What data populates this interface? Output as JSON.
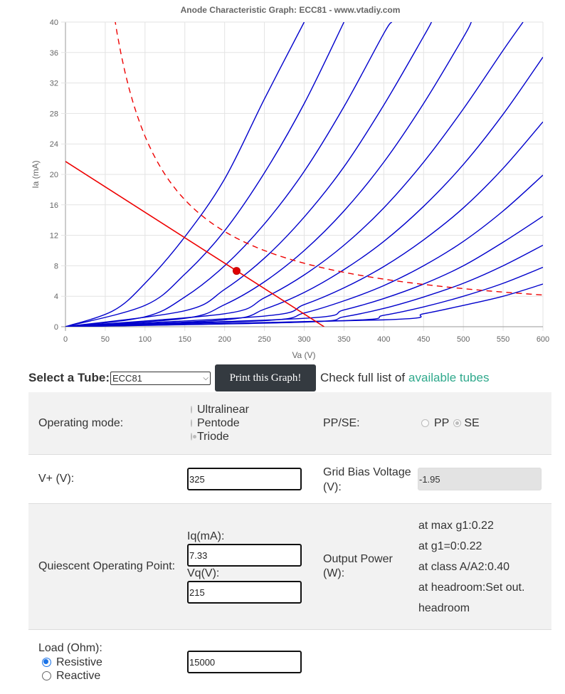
{
  "chart_data": {
    "type": "line",
    "title": "Anode Characteristic Graph: ECC81 - www.vtadiy.com",
    "xlabel": "Va (V)",
    "ylabel": "Ia (mA)",
    "xlim": [
      0,
      600
    ],
    "ylim": [
      0,
      40
    ],
    "xticks": [
      "0",
      "50",
      "100",
      "150",
      "200",
      "250",
      "300",
      "350",
      "400",
      "450",
      "500",
      "550",
      "600"
    ],
    "yticks": [
      "0",
      "4",
      "8",
      "12",
      "16",
      "20",
      "24",
      "28",
      "32",
      "36",
      "40"
    ],
    "grid": true,
    "colors": {
      "curves": "#0000cc",
      "load": "#ee0000",
      "dissipation": "#ee0000"
    },
    "grid_curves": [
      {
        "points": [
          [
            0,
            0
          ],
          [
            60,
            2.1
          ],
          [
            100,
            5.7
          ],
          [
            150,
            11.8
          ],
          [
            200,
            19.4
          ],
          [
            250,
            29.9
          ],
          [
            300,
            40
          ]
        ]
      },
      {
        "points": [
          [
            0,
            0
          ],
          [
            100,
            2.8
          ],
          [
            150,
            6.9
          ],
          [
            200,
            12.6
          ],
          [
            250,
            20.2
          ],
          [
            300,
            29.3
          ],
          [
            350,
            40
          ]
        ]
      },
      {
        "points": [
          [
            0,
            0
          ],
          [
            100,
            1.3
          ],
          [
            150,
            3.9
          ],
          [
            200,
            8.0
          ],
          [
            250,
            13.5
          ],
          [
            300,
            20.4
          ],
          [
            350,
            28.9
          ],
          [
            400,
            38.5
          ],
          [
            410,
            40
          ]
        ]
      },
      {
        "points": [
          [
            0,
            0
          ],
          [
            150,
            2.1
          ],
          [
            200,
            4.9
          ],
          [
            250,
            9.0
          ],
          [
            300,
            14.4
          ],
          [
            350,
            21.0
          ],
          [
            400,
            29.1
          ],
          [
            450,
            38.1
          ],
          [
            460,
            40
          ]
        ]
      },
      {
        "points": [
          [
            0,
            0
          ],
          [
            150,
            1.1
          ],
          [
            200,
            2.9
          ],
          [
            250,
            5.9
          ],
          [
            300,
            10.0
          ],
          [
            350,
            15.2
          ],
          [
            400,
            21.6
          ],
          [
            450,
            29.3
          ],
          [
            500,
            38.0
          ],
          [
            510,
            40
          ]
        ]
      },
      {
        "points": [
          [
            0,
            0
          ],
          [
            200,
            1.7
          ],
          [
            250,
            3.8
          ],
          [
            300,
            6.8
          ],
          [
            350,
            10.7
          ],
          [
            400,
            15.6
          ],
          [
            450,
            21.6
          ],
          [
            500,
            28.6
          ],
          [
            550,
            36.3
          ],
          [
            575,
            40
          ]
        ]
      },
      {
        "points": [
          [
            0,
            0
          ],
          [
            200,
            0.9
          ],
          [
            250,
            2.3
          ],
          [
            300,
            4.5
          ],
          [
            350,
            7.5
          ],
          [
            400,
            11.2
          ],
          [
            450,
            15.8
          ],
          [
            500,
            21.3
          ],
          [
            550,
            27.9
          ],
          [
            600,
            35.4
          ]
        ]
      },
      {
        "points": [
          [
            0,
            0
          ],
          [
            250,
            1.4
          ],
          [
            300,
            2.9
          ],
          [
            350,
            5.1
          ],
          [
            400,
            7.9
          ],
          [
            450,
            11.4
          ],
          [
            500,
            15.6
          ],
          [
            550,
            20.8
          ],
          [
            600,
            26.9
          ]
        ]
      },
      {
        "points": [
          [
            0,
            0
          ],
          [
            250,
            0.8
          ],
          [
            300,
            1.8
          ],
          [
            350,
            3.4
          ],
          [
            400,
            5.4
          ],
          [
            450,
            8.0
          ],
          [
            500,
            11.2
          ],
          [
            550,
            15.2
          ],
          [
            600,
            19.9
          ]
        ]
      },
      {
        "points": [
          [
            0,
            0
          ],
          [
            300,
            1.1
          ],
          [
            350,
            2.2
          ],
          [
            400,
            3.7
          ],
          [
            450,
            5.6
          ],
          [
            500,
            8.0
          ],
          [
            550,
            11.1
          ],
          [
            600,
            14.5
          ]
        ]
      },
      {
        "points": [
          [
            0,
            0
          ],
          [
            300,
            0.6
          ],
          [
            350,
            1.3
          ],
          [
            400,
            2.4
          ],
          [
            450,
            3.9
          ],
          [
            500,
            5.7
          ],
          [
            550,
            8.0
          ],
          [
            600,
            10.7
          ]
        ]
      },
      {
        "points": [
          [
            0,
            0
          ],
          [
            350,
            0.8
          ],
          [
            400,
            1.5
          ],
          [
            450,
            2.6
          ],
          [
            500,
            4.0
          ],
          [
            550,
            5.7
          ],
          [
            600,
            7.8
          ]
        ]
      },
      {
        "points": [
          [
            0,
            0
          ],
          [
            400,
            0.9
          ],
          [
            450,
            1.7
          ],
          [
            500,
            2.8
          ],
          [
            550,
            4.0
          ],
          [
            600,
            5.6
          ]
        ]
      }
    ],
    "load_line": {
      "points": [
        [
          0,
          21.7
        ],
        [
          325,
          0
        ]
      ]
    },
    "operating_point": {
      "x": 215,
      "y": 7.33
    },
    "dissipation_curve": {
      "pmax_w": 2.5
    }
  },
  "form": {
    "select_label": "Select a Tube:",
    "selected_tube": "ECC81",
    "print_button": "Print this Graph!",
    "check_text": "Check full list of",
    "check_link": "available tubes",
    "operating_mode_label": "Operating mode:",
    "modes": [
      "Ultralinear",
      "Pentode",
      "Triode"
    ],
    "ppse_label": "PP/SE:",
    "pp": "PP",
    "se": "SE",
    "vplus_label": "V+ (V):",
    "vplus_value": "325",
    "grid_bias_label": "Grid Bias Voltage (V):",
    "grid_bias_value": "-1.95",
    "quiescent_label": "Quiescent Operating Point:",
    "iq_label": "Iq(mA):",
    "iq_value": "7.33",
    "vq_label": "Vq(V):",
    "vq_value": "215",
    "output_power_label": "Output Power (W):",
    "out_max_g1": "at max g1:0.22",
    "out_g1_zero": "at g1=0:0.22",
    "out_class_a": "at class A/A2:0.40",
    "out_headroom": "at headroom:Set out. headroom",
    "load_label": "Load (Ohm):",
    "resistive": "Resistive",
    "reactive": "Reactive",
    "load_value": "15000"
  }
}
